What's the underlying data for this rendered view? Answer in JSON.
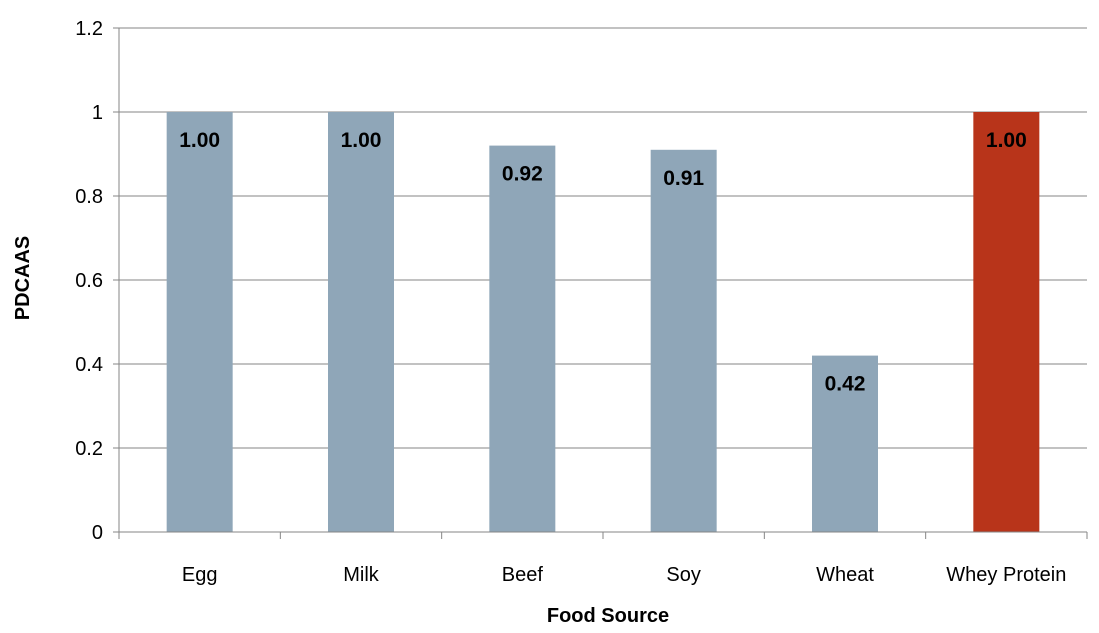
{
  "chart_data": {
    "type": "bar",
    "categories": [
      "Egg",
      "Milk",
      "Beef",
      "Soy",
      "Wheat",
      "Whey Protein"
    ],
    "values": [
      1.0,
      1.0,
      0.92,
      0.91,
      0.42,
      1.0
    ],
    "data_labels": [
      "1.00",
      "1.00",
      "0.92",
      "0.91",
      "0.42",
      "1.00"
    ],
    "bar_colors": [
      "#8FA6B8",
      "#8FA6B8",
      "#8FA6B8",
      "#8FA6B8",
      "#8FA6B8",
      "#B8341A"
    ],
    "xlabel": "Food Source",
    "ylabel": "PDCAAS",
    "ylim": [
      0,
      1.2
    ],
    "yticks": [
      "0",
      "0.2",
      "0.4",
      "0.6",
      "0.8",
      "1",
      "1.2"
    ],
    "grid": "horizontal",
    "legend": "none"
  }
}
